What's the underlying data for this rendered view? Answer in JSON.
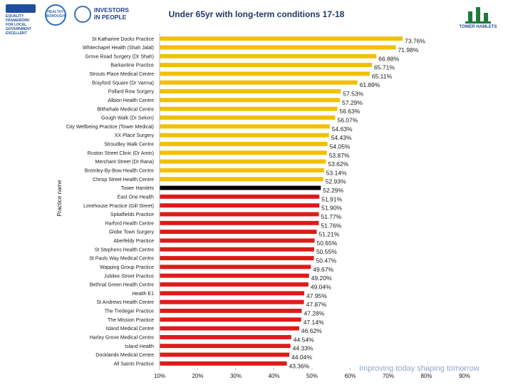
{
  "header": {
    "title": "Under 65yr with long-term conditions 17-18",
    "equality_logo_lines": [
      "EQUALITY",
      "FRAMEWORK",
      "FOR LOCAL",
      "GOVERNMENT",
      "EXCELLENT"
    ],
    "health_logo_text": "HEALTHY BOROUGH",
    "investors_logo_lines": [
      "INVESTORS",
      "IN PEOPLE"
    ],
    "council_logo_text": "TOWER HAMLETS",
    "tagline": "Improving today shaping tomorrow"
  },
  "colors": {
    "above": "#f2c000",
    "benchmark": "#000000",
    "below": "#e01a1a",
    "label": "#1a1a1a",
    "axis": "#bfbfbf"
  },
  "chart_data": {
    "type": "bar",
    "orientation": "horizontal",
    "title": "Under 65yr with long-term conditions 17-18",
    "ylabel": "Practice name",
    "xlabel": "",
    "xlim": [
      10,
      90
    ],
    "xticks": [
      10,
      20,
      30,
      40,
      50,
      60,
      70,
      80,
      90
    ],
    "xtick_labels": [
      "10%",
      "20%",
      "30%",
      "40%",
      "50%",
      "60%",
      "70%",
      "80%",
      "90%"
    ],
    "benchmark": "Tower Hamlets",
    "categories": [
      "St Katharine Docks Practice",
      "Whitechapel Health (Shah Jalal)",
      "Grove Road Surgery (Dr Shah)",
      "Barkantine Practice",
      "Strouts Place Medical Centre",
      "Brayford Square (Dr Varma)",
      "Pollard Row Surgery",
      "Albion Health Centre",
      "Blithehale Medical Centre",
      "Gough Walk (Dr Sekon)",
      "City Wellbeing Practice (Tower Medical)",
      "XX Place Surgery",
      "Stroudley Walk Centre",
      "Ruston Street Clinic (Dr Amin)",
      "Merchant Street (Dr Rana)",
      "Bromley-By-Bow Health Centre",
      "Chrisp Street Health Centre",
      "Tower Hamlets",
      "East One Health",
      "Limehouse Practice (Gill Street)",
      "Spitalfields Practice",
      "Harford Health Centre",
      "Globe Town Surgery",
      "Aberfeldy Practice",
      "St Stephens Health Centre",
      "St Pauls Way Medical Centre",
      "Wapping Group Practice",
      "Jubilee Street Practice",
      "Bethnal Green Health Centre",
      "Health E1",
      "St Andrews Health Centre",
      "The Tredegar Practice",
      "The Mission Practice",
      "Island Medical Centre",
      "Harley Grove Medical Centre",
      "Island Health",
      "Docklands Medical Centre",
      "All Saints Practice"
    ],
    "values": [
      73.76,
      71.98,
      66.88,
      65.71,
      65.11,
      61.89,
      57.53,
      57.29,
      56.63,
      56.07,
      54.63,
      54.43,
      54.05,
      53.87,
      53.62,
      53.14,
      52.93,
      52.29,
      51.91,
      51.9,
      51.77,
      51.76,
      51.21,
      50.65,
      50.55,
      50.47,
      49.67,
      49.2,
      49.04,
      47.95,
      47.87,
      47.28,
      47.14,
      46.62,
      44.54,
      44.33,
      44.04,
      43.36
    ],
    "value_labels": [
      "73.76%",
      "71.98%",
      "66.88%",
      "65.71%",
      "65.11%",
      "61.89%",
      "57.53%",
      "57.29%",
      "56.63%",
      "56.07%",
      "54.63%",
      "54.43%",
      "54.05%",
      "53.87%",
      "53.62%",
      "53.14%",
      "52.93%",
      "52.29%",
      "51.91%",
      "51.90%",
      "51.77%",
      "51.76%",
      "51.21%",
      "50.65%",
      "50.55%",
      "50.47%",
      "49.67%",
      "49.20%",
      "49.04%",
      "47.95%",
      "47.87%",
      "47.28%",
      "47.14%",
      "46.62%",
      "44.54%",
      "44.33%",
      "44.04%",
      "43.36%"
    ],
    "grid": false,
    "legend": "none"
  }
}
